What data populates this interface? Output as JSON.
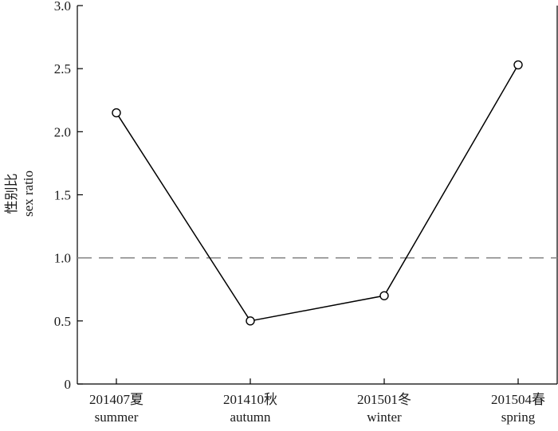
{
  "chart_data": {
    "type": "line",
    "categories": [
      [
        "201407夏",
        "summer"
      ],
      [
        "201410秋",
        "autumn"
      ],
      [
        "201501冬",
        "winter"
      ],
      [
        "201504春",
        "spring"
      ]
    ],
    "series": [
      {
        "values": [
          2.15,
          0.5,
          0.7,
          2.53
        ]
      }
    ],
    "reference_line": {
      "y": 1.0,
      "style": "dashed"
    },
    "ylabel": [
      "性别比",
      "sex ratio"
    ],
    "ylim": [
      0,
      3.0
    ],
    "yticks": [
      "0",
      "0.5",
      "1.0",
      "1.5",
      "2.0",
      "2.5",
      "3.0"
    ],
    "grid": false,
    "marker": "open-circle"
  }
}
